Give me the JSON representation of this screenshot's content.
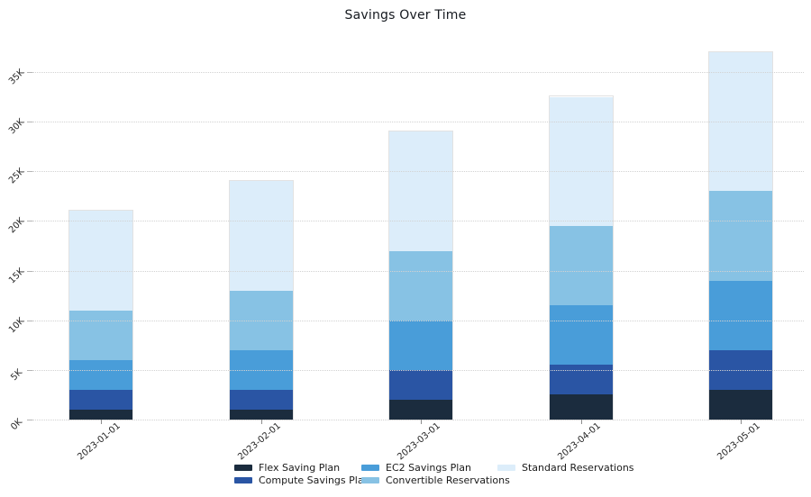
{
  "title": "Savings Over Time",
  "chart_data": {
    "type": "bar",
    "stacked": true,
    "title": "Savings Over Time",
    "xlabel": "",
    "ylabel": "",
    "categories": [
      "2023-01-01",
      "2023-02-01",
      "2023-03-01",
      "2023-04-01",
      "2023-05-01"
    ],
    "series": [
      {
        "name": "Flex Saving Plan",
        "color": "#1b2c3e",
        "values": [
          1000,
          1000,
          2000,
          2500,
          3000
        ]
      },
      {
        "name": "Compute Savings Plan",
        "color": "#2a55a4",
        "values": [
          2000,
          2000,
          3000,
          3000,
          4000
        ]
      },
      {
        "name": "EC2 Savings Plan",
        "color": "#499dd9",
        "values": [
          3000,
          4000,
          5000,
          6000,
          7000
        ]
      },
      {
        "name": "Convertible Reservations",
        "color": "#87c2e4",
        "values": [
          5000,
          6000,
          7000,
          8000,
          9000
        ]
      },
      {
        "name": "Standard Reservations",
        "color": "#dcedfa",
        "values": [
          10000,
          11000,
          12000,
          13000,
          14000
        ]
      }
    ],
    "stack_totals": [
      21000,
      24000,
      29000,
      32500,
      37000
    ],
    "ytick_labels": [
      "0K",
      "5K",
      "10K",
      "15K",
      "20K",
      "25K",
      "30K",
      "35K"
    ],
    "ytick_values": [
      0,
      5000,
      10000,
      15000,
      20000,
      25000,
      30000,
      35000
    ],
    "ylim": [
      0,
      38500
    ],
    "grid": "horizontal-dotted",
    "legend_position": "bottom",
    "background_color": "#ffffff"
  }
}
